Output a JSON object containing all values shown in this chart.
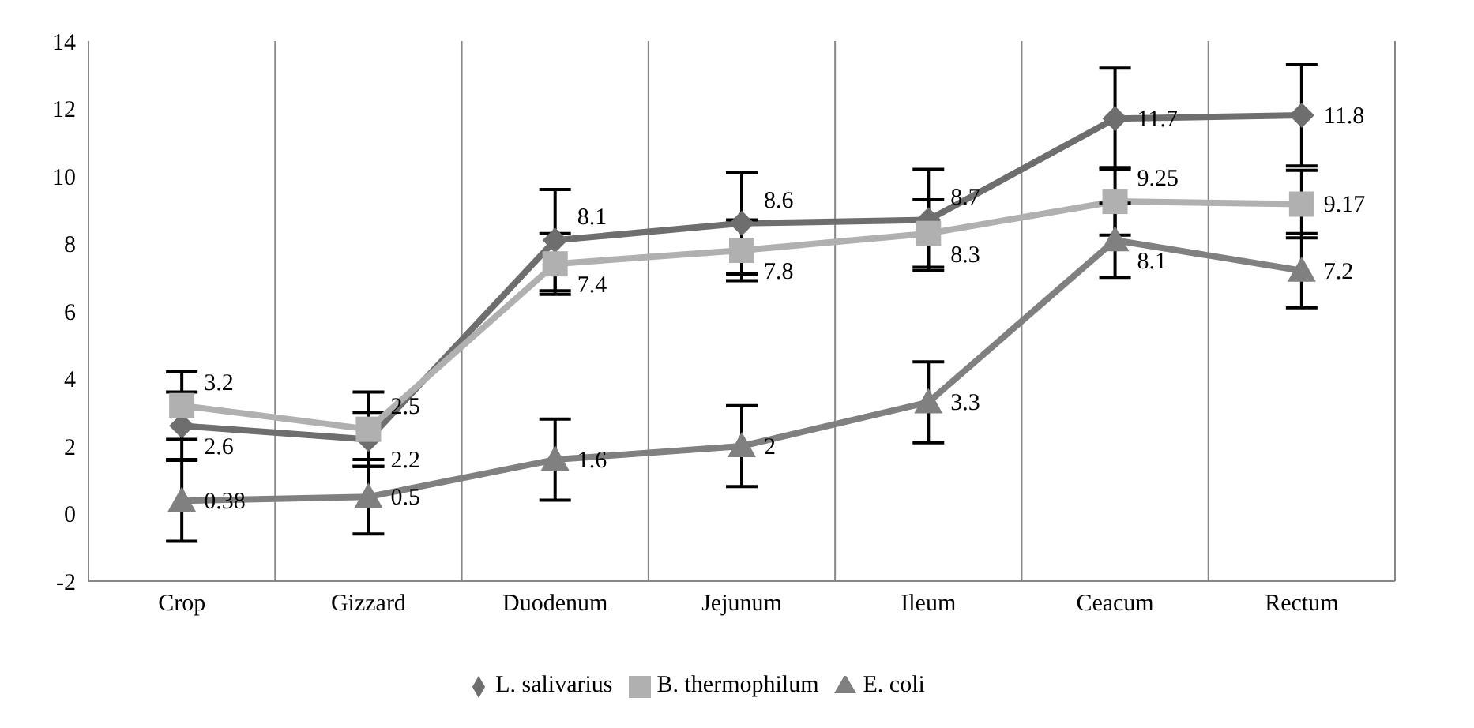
{
  "chart_data": {
    "type": "line",
    "categories": [
      "Crop",
      "Gizzard",
      "Duodenum",
      "Jejunum",
      "Ileum",
      "Ceacum",
      "Rectum"
    ],
    "series": [
      {
        "name": "L. salivarius",
        "color": "#6e6e6e",
        "marker": "diamond",
        "values": [
          2.6,
          2.2,
          8.1,
          8.6,
          8.7,
          11.7,
          11.8
        ],
        "errors": [
          1.0,
          0.8,
          1.5,
          1.5,
          1.5,
          1.5,
          1.5
        ]
      },
      {
        "name": "B. thermophilum",
        "color": "#b0b0b0",
        "marker": "square",
        "values": [
          3.2,
          2.5,
          7.4,
          7.8,
          8.3,
          9.25,
          9.17
        ],
        "errors": [
          1.0,
          1.1,
          0.9,
          0.9,
          1.0,
          1.0,
          1.0
        ]
      },
      {
        "name": "E. coli",
        "color": "#808080",
        "marker": "triangle",
        "values": [
          0.38,
          0.5,
          1.6,
          2,
          3.3,
          8.1,
          7.2
        ],
        "errors": [
          1.2,
          1.1,
          1.2,
          1.2,
          1.2,
          1.1,
          1.1
        ]
      }
    ],
    "ylim": [
      -2,
      14
    ],
    "yticks": [
      -2,
      0,
      2,
      4,
      6,
      8,
      10,
      12,
      14
    ],
    "grid": "x",
    "legend": "bottom",
    "data_labels": true
  }
}
